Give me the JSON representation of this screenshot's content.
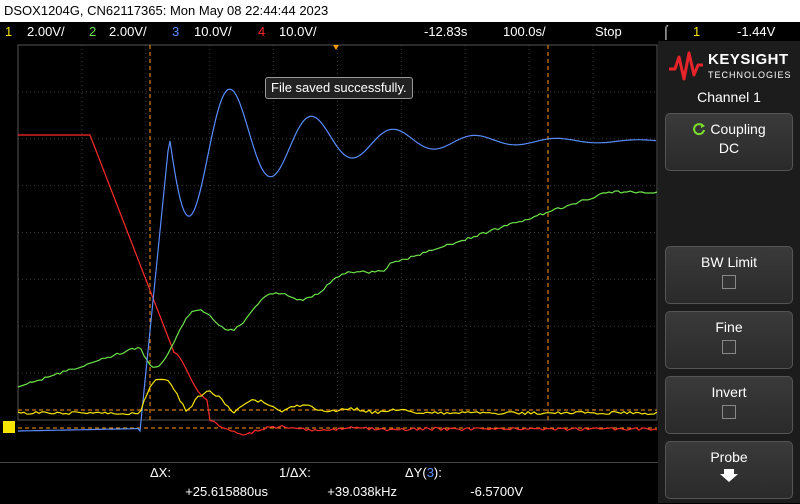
{
  "titlebar": {
    "text": "DSOX1204G, CN62117365: Mon May 08 22:44:44 2023"
  },
  "status": {
    "ch1": {
      "num": "1",
      "scale": "2.00V/"
    },
    "ch2": {
      "num": "2",
      "scale": "2.00V/"
    },
    "ch3": {
      "num": "3",
      "scale": "10.0V/"
    },
    "ch4": {
      "num": "4",
      "scale": "10.0V/"
    },
    "delay": "-12.83s",
    "timebase": "100.0s/",
    "run_state": "Stop",
    "trigger_channel": "1",
    "trigger_level": "-1.44V",
    "trigger_icon": "trigger-edge-icon"
  },
  "popup": {
    "message": "File saved successfully."
  },
  "measure": {
    "dx_label": "ΔX:",
    "dx_value": "+25.615880us",
    "inv_dx_label": "1/ΔX:",
    "inv_dx_value": "+39.038kHz",
    "dy_label_pre": "ΔY(",
    "dy_channel": "3",
    "dy_label_post": "):",
    "dy_value": "-6.5700V"
  },
  "side": {
    "brand": "KEYSIGHT",
    "brand_sub": "TECHNOLOGIES",
    "panel_title": "Channel 1",
    "coupling": {
      "label": "Coupling",
      "value": "DC",
      "icon": "rotate-icon"
    },
    "bw_limit": {
      "label": "BW Limit"
    },
    "fine": {
      "label": "Fine"
    },
    "invert": {
      "label": "Invert"
    },
    "probe": {
      "label": "Probe",
      "icon": "arrow-down-icon"
    }
  },
  "colors": {
    "ch1": "#f5e400",
    "ch2": "#6ee34a",
    "ch3": "#5a8cff",
    "ch4": "#ff2a2a",
    "cursor": "#ff9a00"
  }
}
